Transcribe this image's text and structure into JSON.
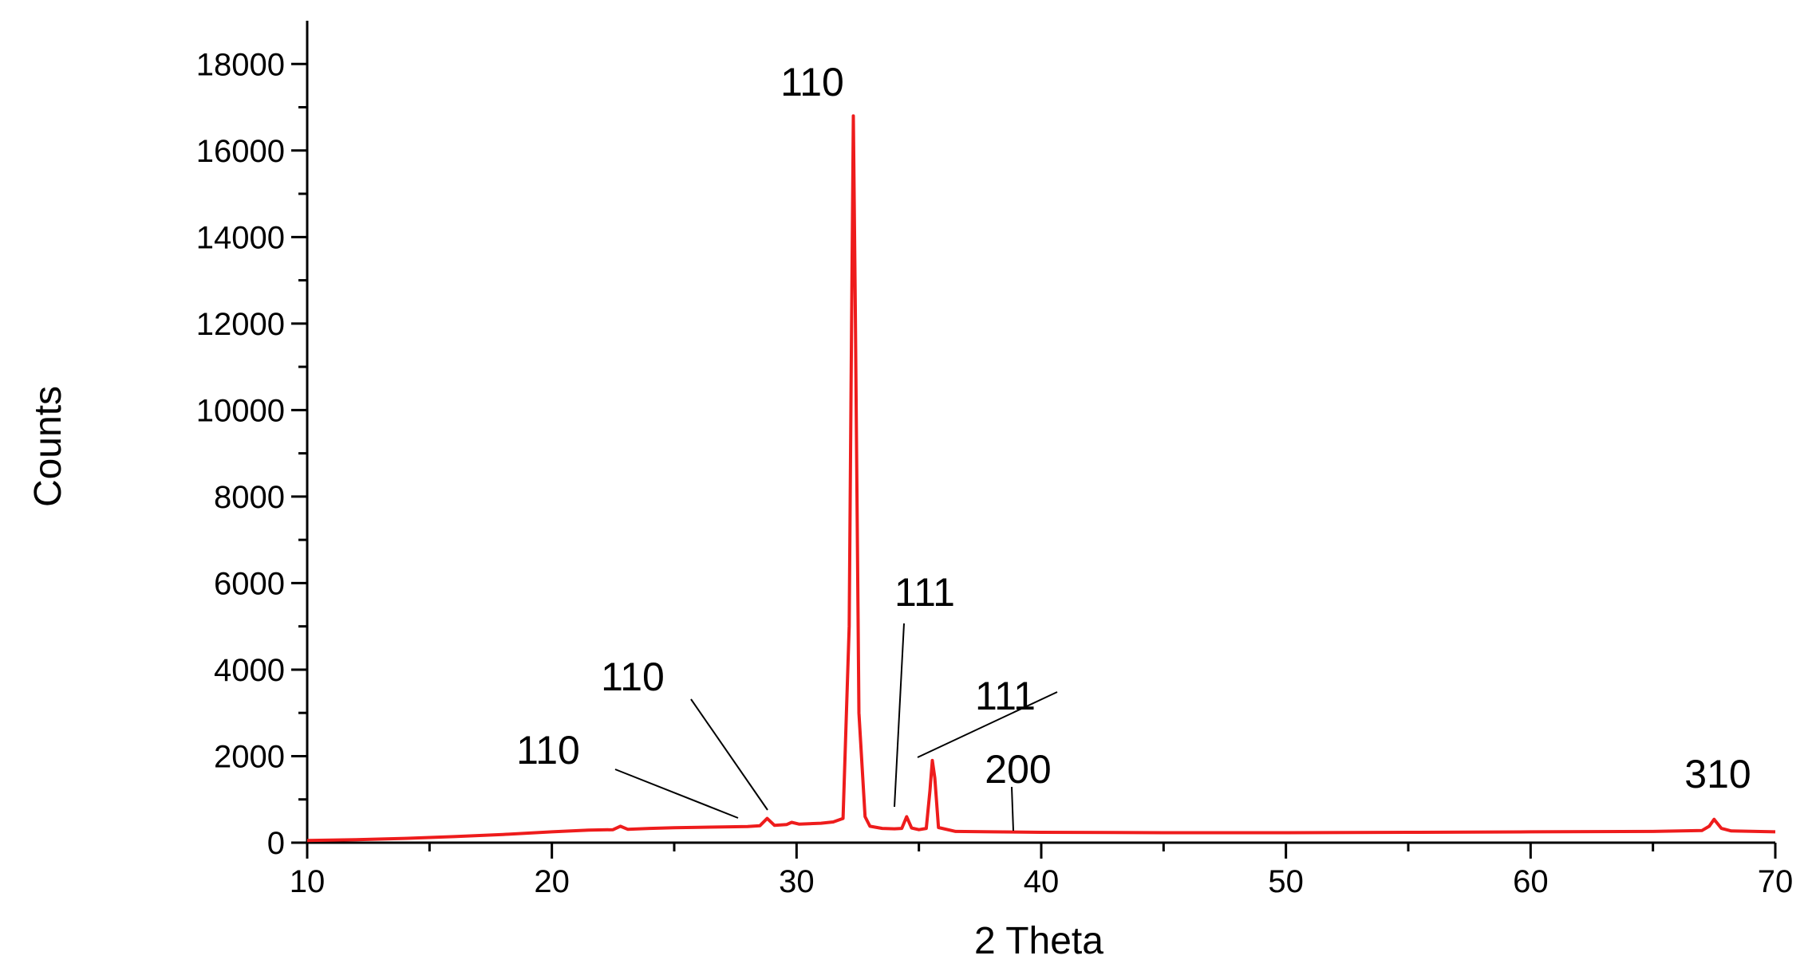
{
  "chart_data": {
    "type": "line",
    "xlabel": "2 Theta",
    "ylabel": "Counts",
    "xlim": [
      10,
      70
    ],
    "ylim": [
      0,
      19000
    ],
    "x_ticks": [
      10,
      20,
      30,
      40,
      50,
      60,
      70
    ],
    "y_ticks": [
      0,
      2000,
      4000,
      6000,
      8000,
      10000,
      12000,
      14000,
      16000,
      18000
    ],
    "grid": false,
    "line_color": "#ee1c1c",
    "series": [
      {
        "points": [
          [
            10,
            50
          ],
          [
            12,
            70
          ],
          [
            14,
            100
          ],
          [
            16,
            140
          ],
          [
            18,
            190
          ],
          [
            20,
            250
          ],
          [
            21.5,
            290
          ],
          [
            22.5,
            300
          ],
          [
            22.8,
            380
          ],
          [
            23.1,
            310
          ],
          [
            24,
            330
          ],
          [
            25,
            345
          ],
          [
            26,
            355
          ],
          [
            27,
            365
          ],
          [
            28,
            375
          ],
          [
            28.5,
            390
          ],
          [
            28.8,
            560
          ],
          [
            29.1,
            400
          ],
          [
            29.6,
            420
          ],
          [
            29.8,
            470
          ],
          [
            30.1,
            430
          ],
          [
            31,
            450
          ],
          [
            31.5,
            480
          ],
          [
            31.9,
            560
          ],
          [
            32.15,
            5000
          ],
          [
            32.25,
            12000
          ],
          [
            32.32,
            16800
          ],
          [
            32.4,
            12500
          ],
          [
            32.55,
            3000
          ],
          [
            32.8,
            600
          ],
          [
            33,
            380
          ],
          [
            33.5,
            330
          ],
          [
            34,
            320
          ],
          [
            34.3,
            330
          ],
          [
            34.5,
            600
          ],
          [
            34.7,
            340
          ],
          [
            35,
            300
          ],
          [
            35.3,
            330
          ],
          [
            35.45,
            1200
          ],
          [
            35.55,
            1900
          ],
          [
            35.65,
            1500
          ],
          [
            35.8,
            350
          ],
          [
            36.5,
            260
          ],
          [
            38,
            250
          ],
          [
            40,
            240
          ],
          [
            45,
            230
          ],
          [
            50,
            230
          ],
          [
            55,
            240
          ],
          [
            60,
            250
          ],
          [
            65,
            260
          ],
          [
            67,
            280
          ],
          [
            67.3,
            380
          ],
          [
            67.5,
            540
          ],
          [
            67.8,
            330
          ],
          [
            68.2,
            270
          ],
          [
            70,
            250
          ]
        ]
      }
    ],
    "annotations": [
      {
        "text": "110",
        "x": 32.3
      },
      {
        "text": "110",
        "x": 28.8
      },
      {
        "text": "110",
        "x": 28.0
      },
      {
        "text": "111",
        "x": 34.0
      },
      {
        "text": "111",
        "x": 35.4
      },
      {
        "text": "200",
        "x": 38.8
      },
      {
        "text": "310",
        "x": 67.5
      }
    ]
  }
}
